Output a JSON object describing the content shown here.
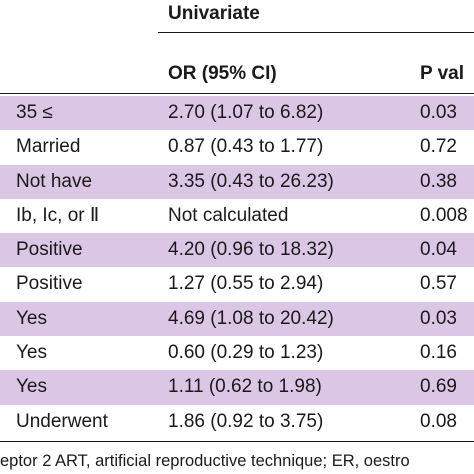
{
  "table": {
    "group_header": "Univariate",
    "columns": {
      "or_ci": "OR (95% CI)",
      "p_value": "P val"
    },
    "rows": [
      {
        "category": "35 ≤",
        "or_ci": "2.70 (1.07 to 6.82)",
        "p": "0.03",
        "shaded": true
      },
      {
        "category": "Married",
        "or_ci": "0.87 (0.43 to 1.77)",
        "p": "0.72",
        "shaded": false
      },
      {
        "category": "Not have",
        "or_ci": "3.35 (0.43 to 26.23)",
        "p": "0.38",
        "shaded": true
      },
      {
        "category": "Ib, Ic, or Ⅱ",
        "or_ci": "Not calculated",
        "p": "0.008",
        "shaded": false
      },
      {
        "category": "Positive",
        "or_ci": "4.20 (0.96 to 18.32)",
        "p": "0.04",
        "shaded": true
      },
      {
        "category": "Positive",
        "or_ci": "1.27 (0.55 to 2.94)",
        "p": "0.57",
        "shaded": false
      },
      {
        "category": "Yes",
        "or_ci": "4.69 (1.08 to 20.42)",
        "p": "0.03",
        "shaded": true
      },
      {
        "category": "Yes",
        "or_ci": "0.60 (0.29 to 1.23)",
        "p": "0.16",
        "shaded": false
      },
      {
        "category": "Yes",
        "or_ci": "1.11 (0.62 to 1.98)",
        "p": "0.69",
        "shaded": true
      },
      {
        "category": "Underwent",
        "or_ci": "1.86 (0.92 to 3.75)",
        "p": "0.08",
        "shaded": false
      }
    ],
    "row_shade_color": "#dcc6e6"
  },
  "footnote": "eptor 2 ART, artificial reproductive technique; ER, oestro"
}
